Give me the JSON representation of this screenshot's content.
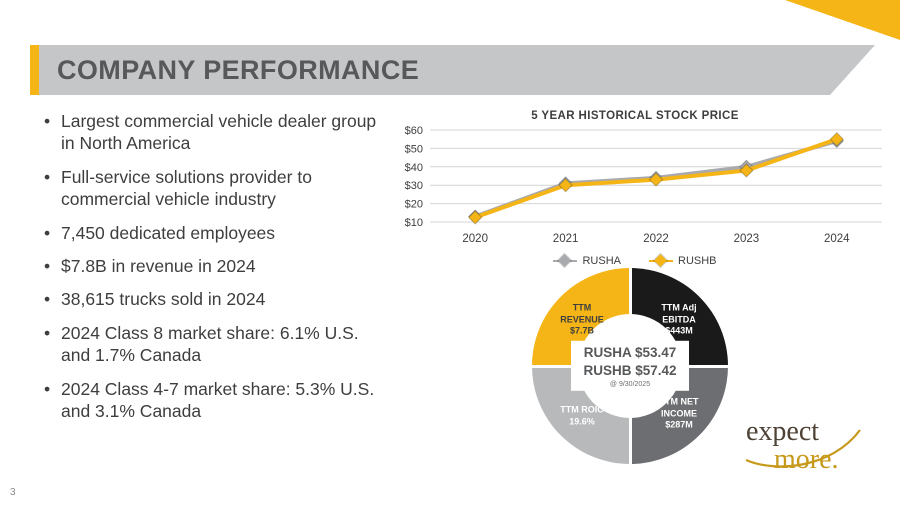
{
  "page": {
    "number": "3"
  },
  "header": {
    "title": "COMPANY PERFORMANCE"
  },
  "bullets": [
    "Largest commercial vehicle dealer group in North America",
    "Full-service solutions provider to commercial vehicle industry",
    "7,450 dedicated employees",
    "$7.8B in revenue in 2024",
    "38,615 trucks sold in 2024",
    "2024 Class 8 market share: 6.1% U.S. and 1.7% Canada",
    "2024 Class 4-7 market share: 5.3% U.S. and 3.1% Canada"
  ],
  "colors": {
    "accent_gold": "#F5B517",
    "banner_gray": "#C4C6C8",
    "title_gray": "#57585A",
    "rusha_line_gray": "#A8AAAD",
    "rushb_line_gold": "#F5B517",
    "donut_black": "#1A1A1A",
    "donut_dark_gray": "#6D6E71",
    "donut_light_gray": "#B7B9BB"
  },
  "chart_data": [
    {
      "type": "line",
      "title": "5 YEAR HISTORICAL STOCK PRICE",
      "x": [
        "2020",
        "2021",
        "2022",
        "2023",
        "2024"
      ],
      "series": [
        {
          "name": "RUSHA",
          "color": "#A8AAAD",
          "values": [
            13,
            31,
            34,
            40,
            54
          ]
        },
        {
          "name": "RUSHB",
          "color": "#F5B517",
          "values": [
            12.5,
            30,
            33,
            38,
            55
          ]
        }
      ],
      "ylim": [
        10,
        60
      ],
      "yticks": [
        10,
        20,
        30,
        40,
        50,
        60
      ],
      "ytick_labels": [
        "$10",
        "$20",
        "$30",
        "$40",
        "$50",
        "$60"
      ],
      "grid": true,
      "legend_position": "bottom",
      "marker": "diamond"
    },
    {
      "type": "pie",
      "subtype": "donut",
      "segments": [
        {
          "name": "TTM REVENUE",
          "text": "TTM\nREVENUE\n$7.7B",
          "value": "$7.7B",
          "share_pct": 25,
          "color": "#F5B517",
          "text_color": "#3E3E3E",
          "position": "top-left"
        },
        {
          "name": "TTM Adj EBITDA",
          "text": "TTM Adj\nEBITDA\n$443M",
          "value": "$443M",
          "share_pct": 25,
          "color": "#1A1A1A",
          "text_color": "#FFFFFF",
          "position": "top-right"
        },
        {
          "name": "TTM NET INCOME",
          "text": "TTM NET\nINCOME\n$287M",
          "value": "$287M",
          "share_pct": 25,
          "color": "#6D6E71",
          "text_color": "#FFFFFF",
          "position": "bottom-right"
        },
        {
          "name": "TTM ROIC",
          "text": "TTM ROIC\n19.6%",
          "value": "19.6%",
          "share_pct": 25,
          "color": "#B7B9BB",
          "text_color": "#FFFFFF",
          "position": "bottom-left"
        }
      ],
      "center": {
        "rusha": "RUSHA $53.47",
        "rushb": "RUSHB $57.42",
        "as_of": "@ 9/30/2025"
      }
    }
  ],
  "logo": {
    "line1": "expect",
    "line2": "more."
  }
}
